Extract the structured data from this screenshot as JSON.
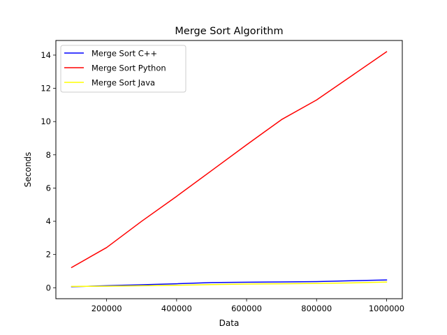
{
  "chart_data": {
    "type": "line",
    "title": "Merge Sort Algorithm",
    "xlabel": "Data",
    "ylabel": "Seconds",
    "xlim": [
      55000,
      1045000
    ],
    "ylim": [
      -0.66,
      14.88
    ],
    "xticks": [
      200000,
      400000,
      600000,
      800000,
      1000000
    ],
    "yticks": [
      0,
      2,
      4,
      6,
      8,
      10,
      12,
      14
    ],
    "grid": false,
    "legend_position": "top-left",
    "series": [
      {
        "name": "Merge Sort C++",
        "color": "#0000ff",
        "x": [
          100000,
          200000,
          300000,
          400000,
          500000,
          600000,
          700000,
          800000,
          900000,
          1000000
        ],
        "y": [
          0.06,
          0.12,
          0.18,
          0.24,
          0.31,
          0.33,
          0.35,
          0.37,
          0.42,
          0.47
        ]
      },
      {
        "name": "Merge Sort Python",
        "color": "#ff0000",
        "x": [
          100000,
          200000,
          300000,
          400000,
          500000,
          600000,
          700000,
          800000,
          900000,
          1000000
        ],
        "y": [
          1.22,
          2.42,
          4.0,
          5.5,
          7.05,
          8.6,
          10.12,
          11.3,
          12.75,
          14.2
        ]
      },
      {
        "name": "Merge Sort Java",
        "color": "#ffff00",
        "x": [
          100000,
          200000,
          300000,
          400000,
          500000,
          600000,
          700000,
          800000,
          900000,
          1000000
        ],
        "y": [
          0.08,
          0.09,
          0.12,
          0.15,
          0.19,
          0.22,
          0.24,
          0.26,
          0.29,
          0.34
        ]
      }
    ]
  }
}
